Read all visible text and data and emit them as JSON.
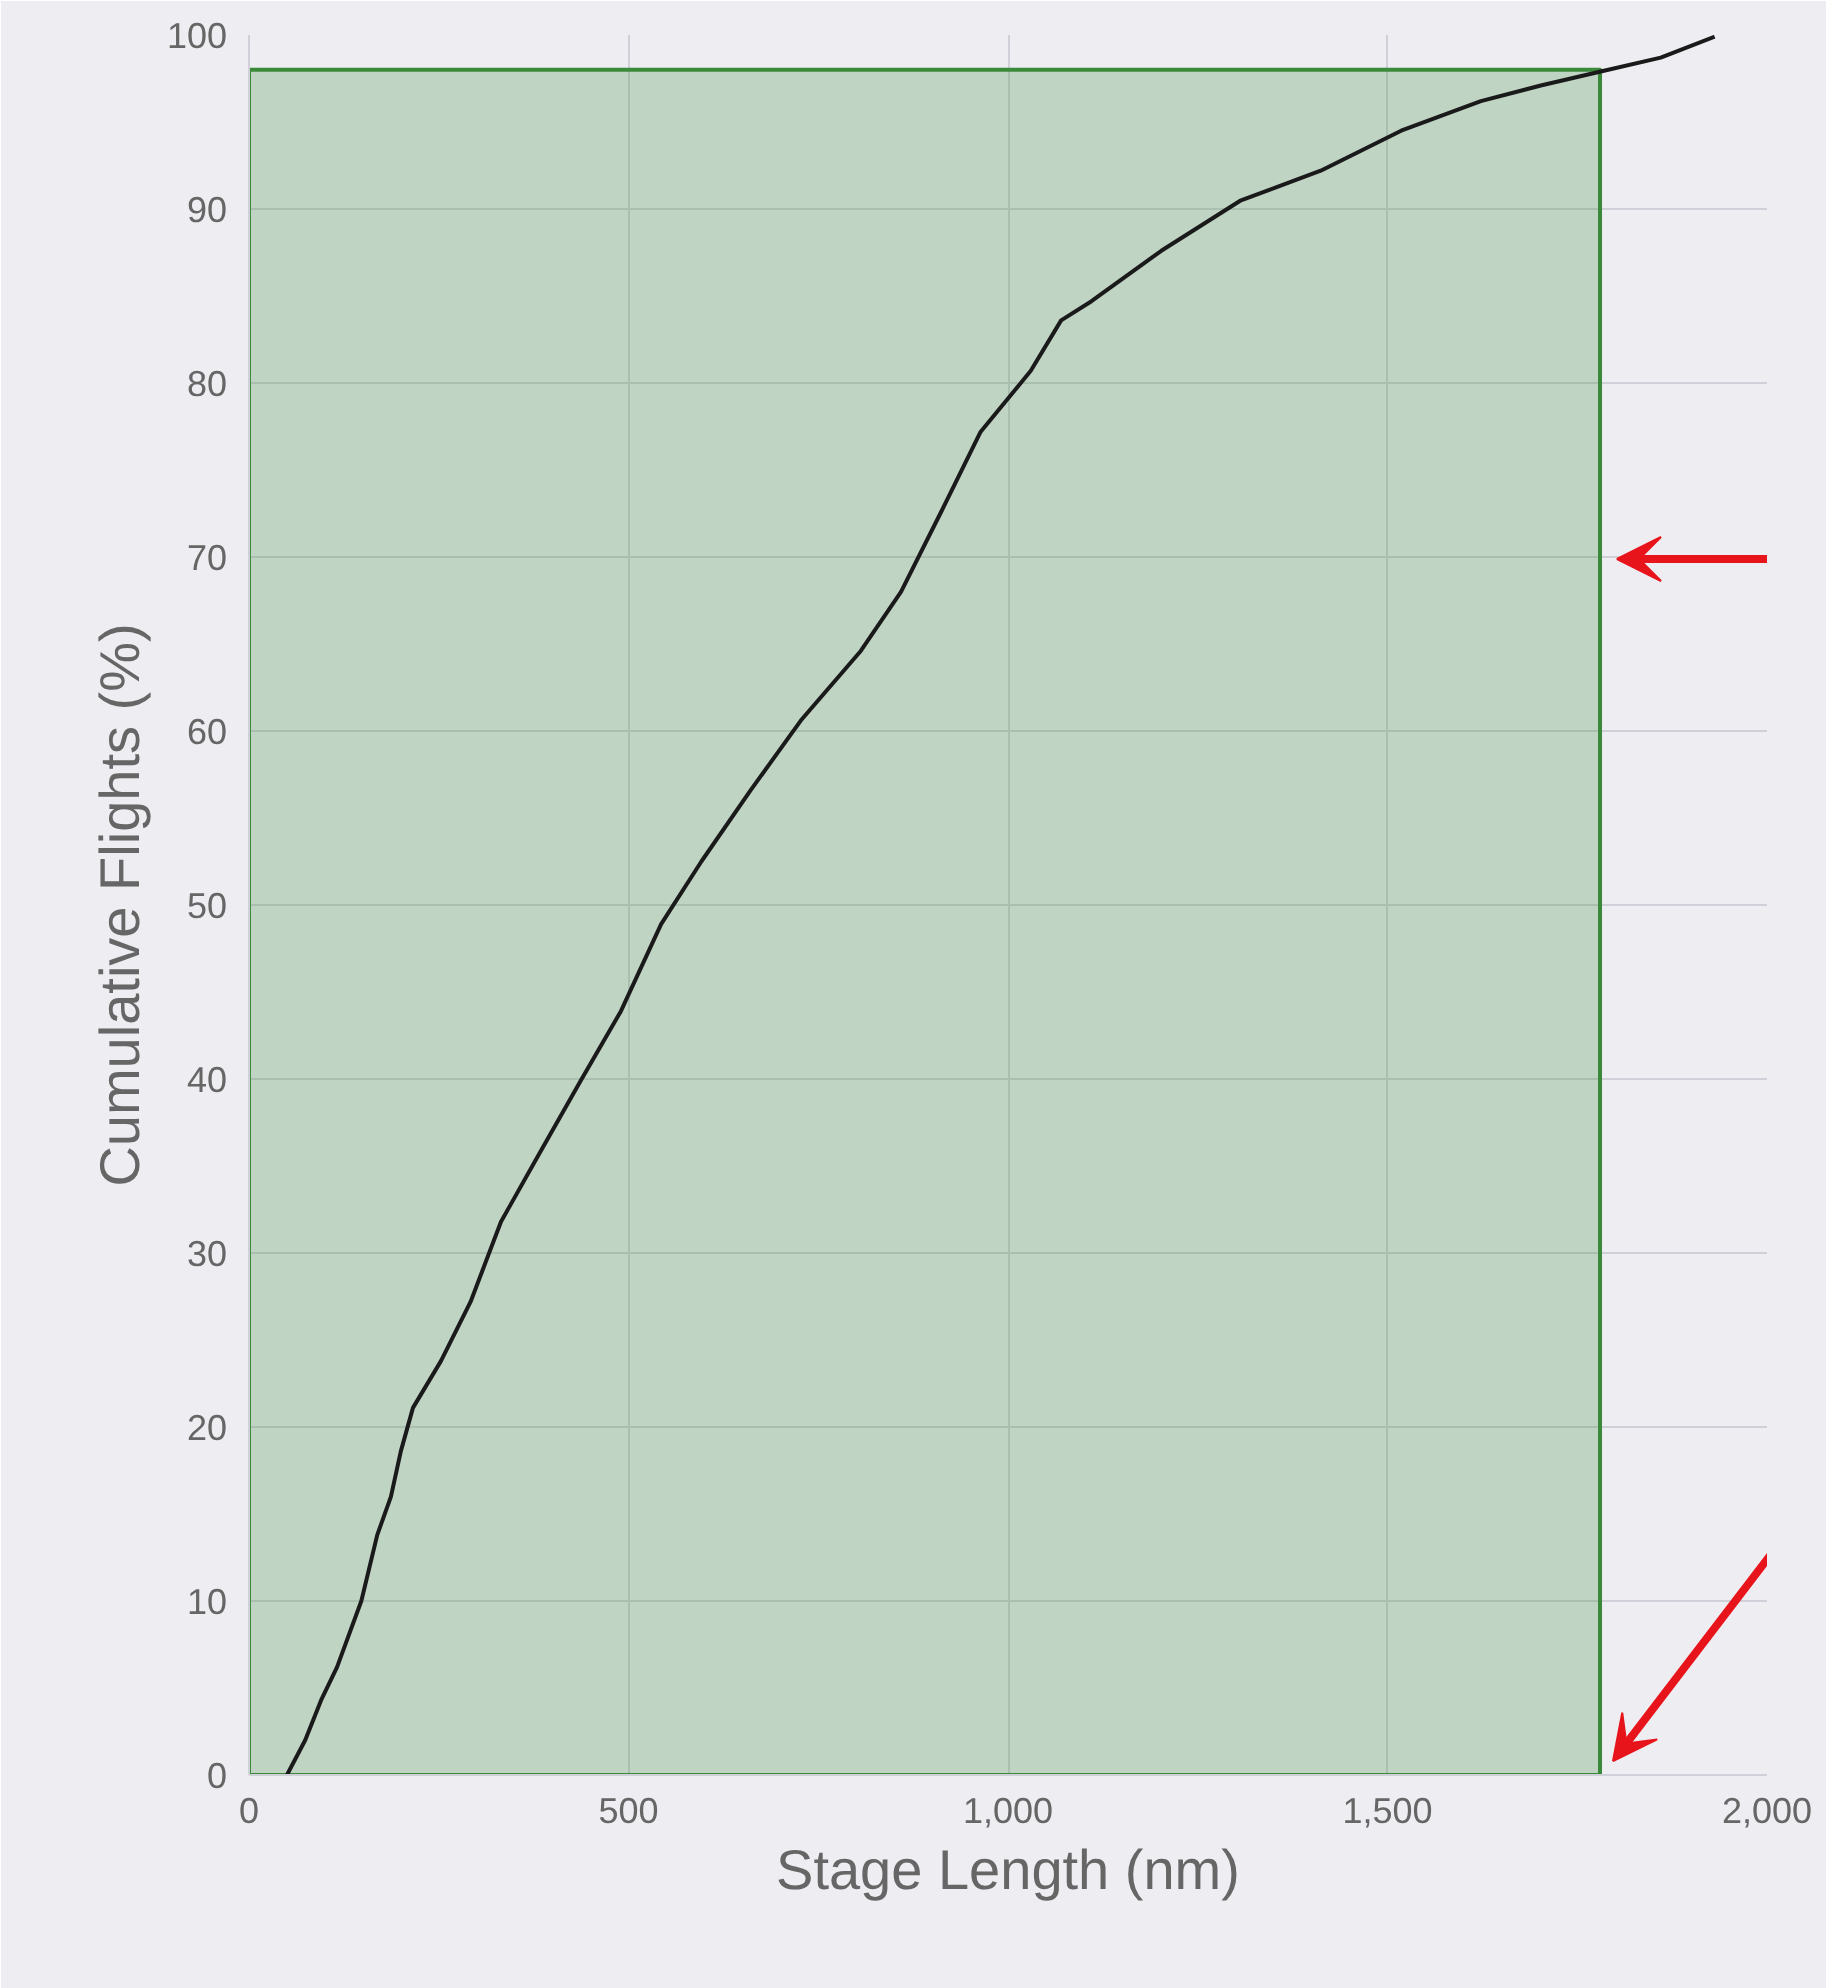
{
  "chart_data": {
    "type": "line",
    "xlabel": "Stage Length (nm)",
    "ylabel": "Cumulative Flights (%)",
    "xlim": [
      0,
      2000
    ],
    "ylim": [
      0,
      100
    ],
    "xticks": [
      0,
      {
        "value": 500,
        "label": "500"
      },
      {
        "value": 1000,
        "label": "1,000"
      },
      {
        "value": 1500,
        "label": "1,500"
      },
      {
        "value": 2000,
        "label": "2,000"
      }
    ],
    "yticks": [
      0,
      10,
      20,
      30,
      40,
      50,
      60,
      70,
      80,
      90,
      100
    ],
    "grid": true,
    "series": [
      {
        "type": "area",
        "color": "#3a8a3a",
        "x": [
          0,
          1780
        ],
        "values": [
          98,
          98
        ]
      },
      {
        "color": "#1a1a1a",
        "x": [
          50,
          74,
          95,
          116,
          148,
          169,
          187,
          200,
          216,
          253,
          292,
          332,
          385,
          437,
          490,
          543,
          596,
          661,
          727,
          806,
          859,
          912,
          964,
          1030,
          1070,
          1110,
          1202,
          1307,
          1412,
          1518,
          1623,
          1702,
          1781,
          1860,
          1931
        ],
        "values": [
          0,
          2,
          4.3,
          6.2,
          10,
          13.8,
          16,
          18.6,
          21.1,
          23.8,
          27.2,
          31.8,
          35.9,
          39.9,
          43.9,
          48.9,
          52.5,
          56.6,
          60.6,
          64.6,
          68,
          72.6,
          77.2,
          80.7,
          83.6,
          84.7,
          87.6,
          90.5,
          92.2,
          94.5,
          96.2,
          97.1,
          97.9,
          98.7,
          99.9
        ]
      }
    ]
  }
}
